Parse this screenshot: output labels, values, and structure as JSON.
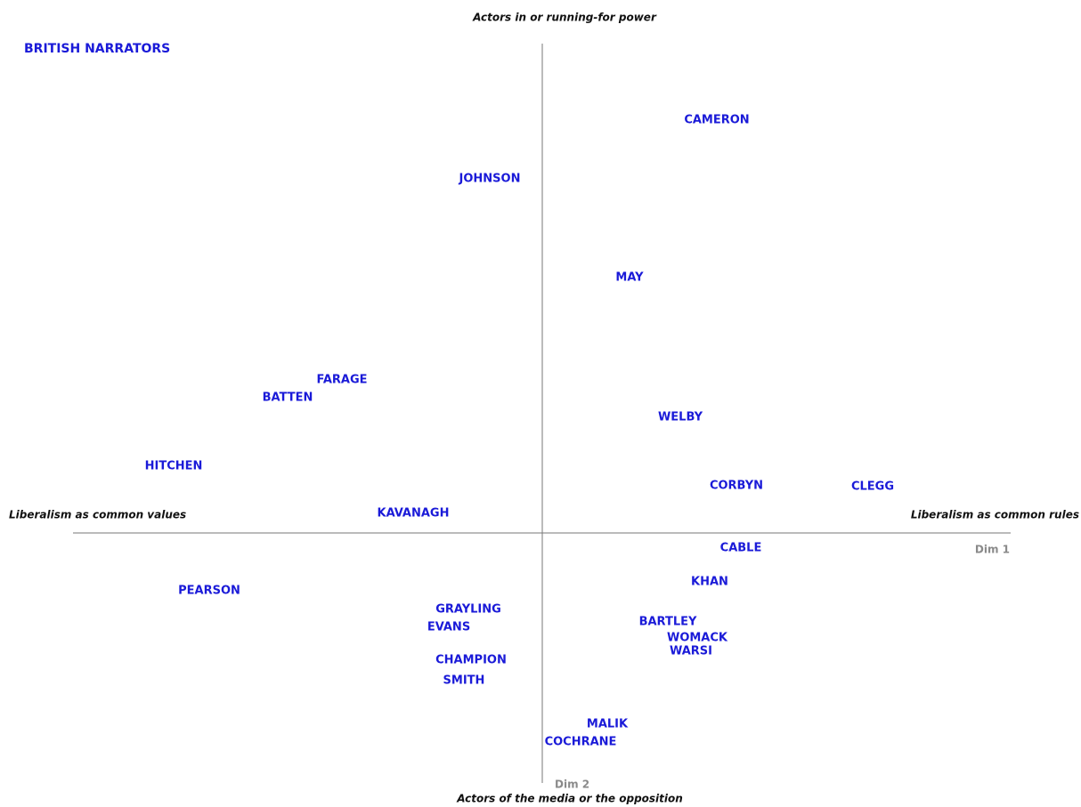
{
  "chart_data": {
    "type": "scatter",
    "title": "BRITISH NARRATORS",
    "y_label_top": "Actors in or running-for power",
    "y_label_bottom": "Actors of the media or the opposition",
    "x_label_left": "Liberalism as common values",
    "x_label_right": "Liberalism as common rules",
    "x_axis_name": "Dim 1",
    "y_axis_name": "Dim 2",
    "color": "#1a1ad8",
    "xlim": [
      -6,
      6
    ],
    "ylim": [
      -3,
      5.5
    ],
    "labels": [
      "CAMERON",
      "JOHNSON",
      "MAY",
      "FARAGE",
      "BATTEN",
      "WELBY",
      "HITCHEN",
      "CORBYN",
      "CLEGG",
      "KAVANAGH",
      "CABLE",
      "KHAN",
      "PEARSON",
      "GRAYLING",
      "EVANS",
      "BARTLEY",
      "WOMACK",
      "WARSI",
      "CHAMPION",
      "SMITH",
      "MALIK",
      "COCHRANE"
    ],
    "x": [
      1.96,
      -0.59,
      0.98,
      -2.25,
      -2.86,
      1.55,
      -4.14,
      2.18,
      3.71,
      -1.45,
      2.23,
      1.88,
      -3.74,
      -0.83,
      -1.05,
      1.41,
      1.74,
      1.67,
      -0.8,
      -0.88,
      0.73,
      0.43
    ],
    "y": [
      4.64,
      3.98,
      2.87,
      1.72,
      1.52,
      1.3,
      0.75,
      0.53,
      0.52,
      0.22,
      -0.17,
      -0.55,
      -0.65,
      -0.86,
      -1.06,
      -1,
      -1.18,
      -1.33,
      -1.43,
      -1.66,
      -2.15,
      -2.35
    ]
  }
}
